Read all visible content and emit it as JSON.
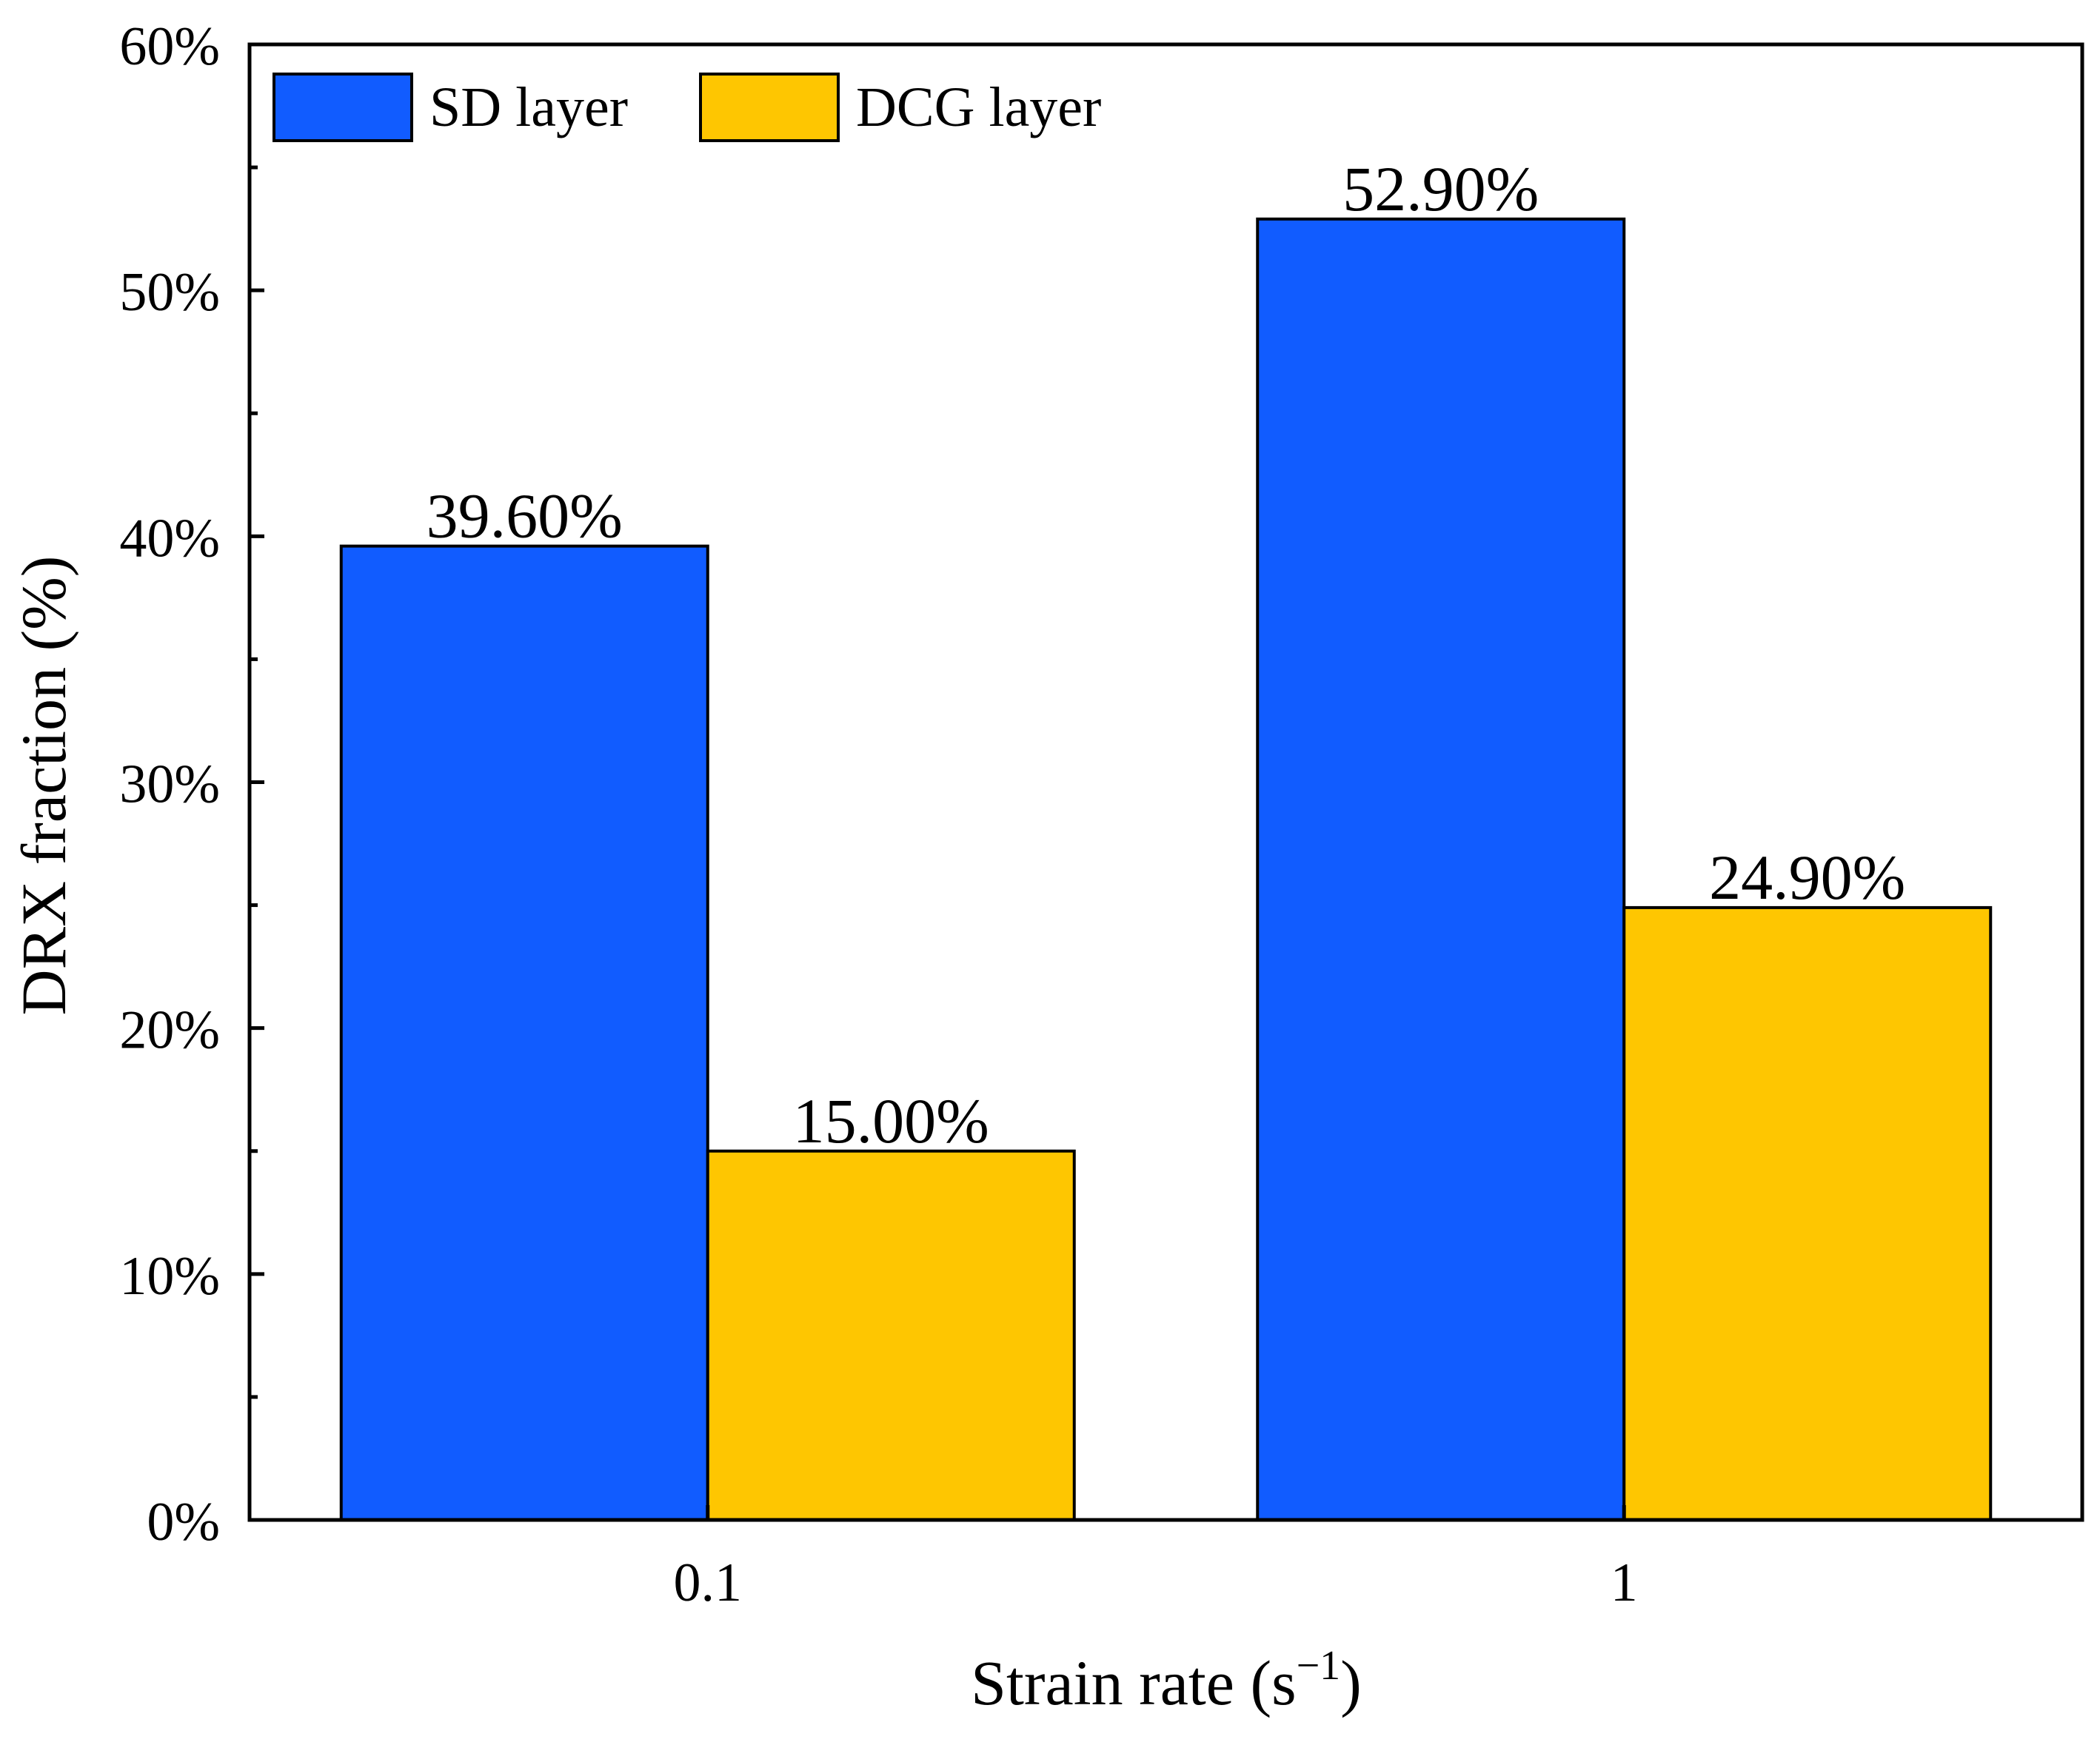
{
  "chart_data": {
    "type": "bar",
    "title": "",
    "xlabel": "Strain rate (s",
    "xlabel_sup": "−1",
    "xlabel_close": ")",
    "ylabel": "DRX fraction (%)",
    "categories": [
      "0.1",
      "1"
    ],
    "ylim": [
      0,
      60
    ],
    "yticks": [
      0,
      10,
      20,
      30,
      40,
      50,
      60
    ],
    "ytick_labels": [
      "0%",
      "10%",
      "20%",
      "30%",
      "40%",
      "50%",
      "60%"
    ],
    "grid": false,
    "legend_position": "top-left",
    "series": [
      {
        "name": "SD layer",
        "color": "#115cff",
        "values": [
          39.6,
          52.9
        ],
        "labels": [
          "39.60%",
          "52.90%"
        ]
      },
      {
        "name": "DCG layer",
        "color": "#fec601",
        "values": [
          15.0,
          24.9
        ],
        "labels": [
          "15.00%",
          "24.90%"
        ]
      }
    ]
  }
}
